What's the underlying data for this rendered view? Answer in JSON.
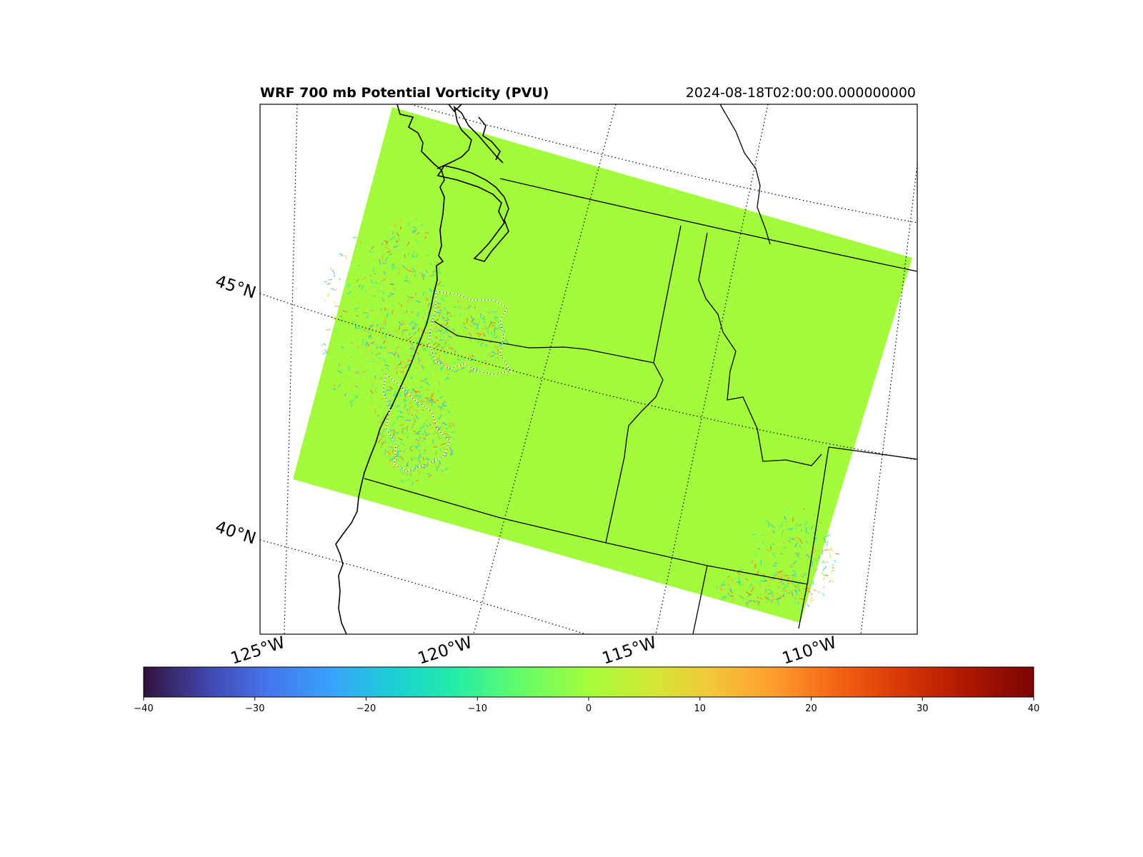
{
  "map": {
    "title": "WRF 700 mb Potential Vorticity (PVU)",
    "valid_time": "2024-08-18T02:00:00.000000000",
    "field_base_color": "#a2fb3c",
    "lat_labels": [
      "45°N",
      "40°N"
    ],
    "lon_labels": [
      "125°W",
      "120°W",
      "115°W",
      "110°W"
    ]
  },
  "colorbar": {
    "colormap": "turbo",
    "vmin": -40,
    "vmax": 40,
    "ticks": [
      -40,
      -30,
      -20,
      -10,
      0,
      10,
      20,
      30,
      40
    ],
    "tick_labels": [
      "−40",
      "−30",
      "−20",
      "−10",
      "0",
      "10",
      "20",
      "30",
      "40"
    ]
  }
}
